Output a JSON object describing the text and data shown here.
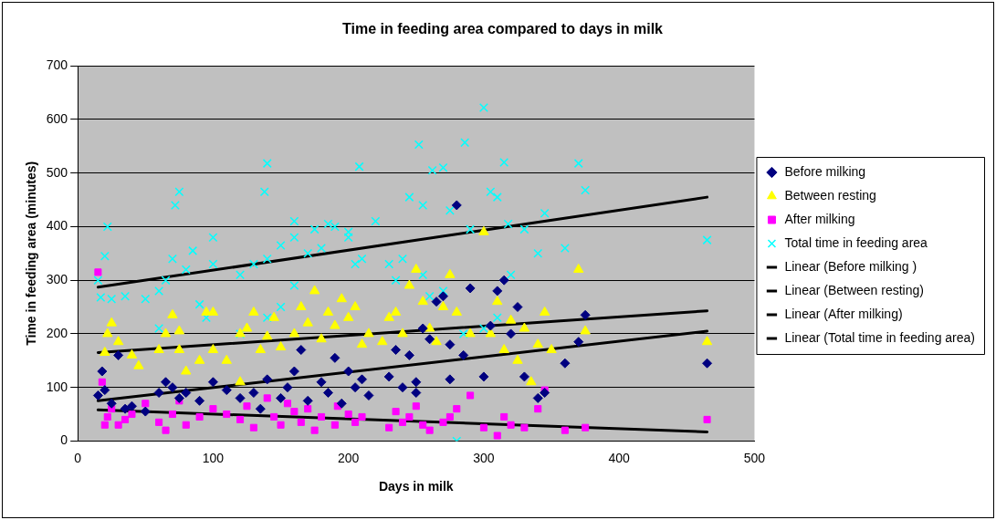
{
  "chart_data": {
    "type": "scatter",
    "title": "Time in feeding area compared to days in milk",
    "xlabel": "Days in milk",
    "ylabel": "Time in feeding area (minutes)",
    "xlim": [
      0,
      500
    ],
    "xticks": [
      0,
      100,
      200,
      300,
      400,
      500
    ],
    "ylim": [
      0,
      700
    ],
    "yticks": [
      0,
      100,
      200,
      300,
      400,
      500,
      600,
      700
    ],
    "grid": "y",
    "legend": "right",
    "series": [
      {
        "name": "Before milking",
        "color": "#000080",
        "marker": "diamond",
        "x": [
          15,
          18,
          20,
          25,
          30,
          35,
          40,
          50,
          60,
          65,
          70,
          75,
          80,
          90,
          100,
          110,
          120,
          130,
          135,
          140,
          150,
          155,
          160,
          165,
          170,
          180,
          185,
          190,
          195,
          200,
          205,
          210,
          215,
          230,
          235,
          240,
          245,
          250,
          255,
          260,
          265,
          270,
          275,
          280,
          285,
          290,
          300,
          305,
          310,
          315,
          320,
          325,
          330,
          340,
          345,
          360,
          370,
          375,
          465,
          275,
          250
        ],
        "values": [
          85,
          130,
          95,
          70,
          160,
          60,
          65,
          55,
          90,
          110,
          100,
          80,
          90,
          75,
          110,
          95,
          80,
          90,
          60,
          115,
          80,
          100,
          130,
          170,
          75,
          110,
          90,
          155,
          70,
          130,
          100,
          115,
          85,
          120,
          170,
          100,
          160,
          90,
          210,
          190,
          260,
          270,
          180,
          440,
          160,
          285,
          120,
          215,
          280,
          300,
          200,
          250,
          120,
          80,
          90,
          145,
          185,
          235,
          145,
          115,
          110
        ]
      },
      {
        "name": "Between resting",
        "color": "#ffff00",
        "marker": "triangle",
        "x": [
          20,
          22,
          25,
          30,
          40,
          45,
          60,
          65,
          70,
          75,
          80,
          90,
          95,
          100,
          110,
          120,
          125,
          130,
          135,
          140,
          145,
          150,
          160,
          165,
          170,
          175,
          180,
          185,
          190,
          195,
          200,
          205,
          210,
          215,
          225,
          230,
          235,
          240,
          245,
          250,
          255,
          260,
          265,
          270,
          275,
          280,
          290,
          300,
          305,
          310,
          315,
          320,
          325,
          330,
          335,
          340,
          345,
          350,
          370,
          375,
          465,
          120,
          100,
          75
        ],
        "values": [
          165,
          200,
          220,
          185,
          160,
          140,
          170,
          200,
          235,
          170,
          130,
          150,
          240,
          170,
          150,
          200,
          210,
          240,
          170,
          195,
          230,
          175,
          200,
          250,
          220,
          280,
          190,
          240,
          215,
          265,
          230,
          250,
          180,
          200,
          185,
          230,
          240,
          200,
          290,
          320,
          260,
          210,
          185,
          250,
          310,
          240,
          200,
          390,
          200,
          260,
          170,
          225,
          150,
          210,
          110,
          180,
          240,
          170,
          320,
          205,
          185,
          110,
          240,
          205
        ]
      },
      {
        "name": "After milking",
        "color": "#ff00ff",
        "marker": "square",
        "x": [
          15,
          18,
          20,
          22,
          25,
          30,
          35,
          40,
          50,
          60,
          65,
          70,
          75,
          80,
          90,
          100,
          110,
          120,
          125,
          130,
          140,
          145,
          150,
          155,
          160,
          165,
          170,
          175,
          180,
          190,
          192,
          200,
          205,
          210,
          230,
          235,
          240,
          245,
          250,
          255,
          260,
          270,
          275,
          280,
          290,
          300,
          310,
          315,
          320,
          330,
          340,
          345,
          360,
          375,
          465
        ],
        "values": [
          315,
          110,
          30,
          45,
          60,
          30,
          40,
          50,
          70,
          35,
          20,
          50,
          75,
          30,
          45,
          60,
          50,
          40,
          65,
          25,
          80,
          45,
          30,
          70,
          55,
          35,
          60,
          20,
          45,
          30,
          65,
          50,
          35,
          45,
          25,
          55,
          35,
          45,
          65,
          30,
          20,
          35,
          45,
          60,
          85,
          25,
          10,
          45,
          30,
          25,
          60,
          95,
          20,
          25,
          40
        ]
      },
      {
        "name": "Total time in feeding area",
        "color": "#00ffff",
        "marker": "cross",
        "x": [
          300,
          286,
          252,
          375,
          370,
          315,
          305,
          310,
          208,
          140,
          138,
          75,
          72,
          160,
          185,
          200,
          220,
          245,
          262,
          270,
          255,
          275,
          290,
          318,
          330,
          345,
          360,
          465,
          340,
          320,
          22,
          20,
          15,
          17,
          25,
          35,
          50,
          60,
          65,
          80,
          90,
          100,
          100,
          120,
          130,
          140,
          150,
          160,
          170,
          175,
          180,
          190,
          200,
          205,
          210,
          230,
          235,
          240,
          255,
          260,
          270,
          280,
          285,
          300,
          310,
          160,
          150,
          60,
          120,
          140,
          70,
          85,
          95
        ],
        "values": [
          622,
          557,
          553,
          468,
          518,
          520,
          465,
          455,
          512,
          518,
          465,
          465,
          440,
          410,
          405,
          390,
          410,
          455,
          505,
          510,
          440,
          430,
          395,
          405,
          395,
          425,
          360,
          375,
          350,
          310,
          400,
          345,
          300,
          268,
          265,
          270,
          265,
          280,
          300,
          320,
          255,
          380,
          330,
          310,
          330,
          340,
          365,
          380,
          350,
          395,
          360,
          400,
          380,
          330,
          340,
          330,
          300,
          340,
          310,
          270,
          280,
          0,
          200,
          210,
          230,
          290,
          250,
          210,
          200,
          230,
          340,
          355,
          230
        ]
      },
      {
        "name": "Linear (Before milking )",
        "type": "line",
        "color": "#000000",
        "marker": "none",
        "x": [
          15,
          465
        ],
        "values": [
          75,
          205
        ]
      },
      {
        "name": "Linear (Between resting)",
        "type": "line",
        "color": "#000000",
        "marker": "none",
        "x": [
          15,
          465
        ],
        "values": [
          165,
          243
        ]
      },
      {
        "name": "Linear (After milking)",
        "type": "line",
        "color": "#000000",
        "marker": "none",
        "x": [
          15,
          465
        ],
        "values": [
          58,
          17
        ]
      },
      {
        "name": "Linear (Total time in feeding area)",
        "type": "line",
        "color": "#000000",
        "marker": "none",
        "x": [
          15,
          465
        ],
        "values": [
          287,
          455
        ]
      }
    ]
  }
}
